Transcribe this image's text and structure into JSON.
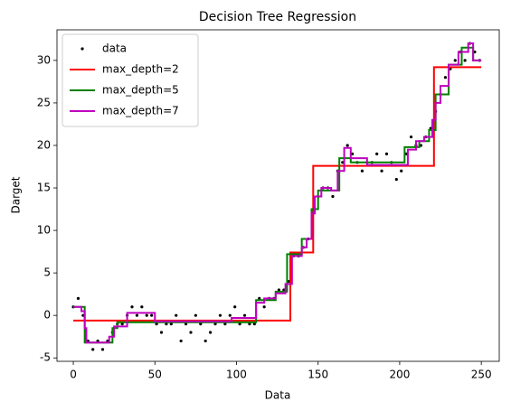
{
  "chart_data": {
    "type": "line",
    "title": "Decision Tree Regression",
    "xlabel": "Data",
    "ylabel": "Darget",
    "xlim": [
      -10,
      261
    ],
    "ylim": [
      -5.4,
      33.6
    ],
    "xticks": [
      0,
      50,
      100,
      150,
      200,
      250
    ],
    "yticks": [
      -5,
      0,
      5,
      10,
      15,
      20,
      25,
      30
    ],
    "grid": false,
    "legend": "upper left",
    "series": [
      {
        "name": "data",
        "type": "scatter",
        "color": "#000000",
        "x": [
          0,
          3,
          6,
          9,
          12,
          15,
          18,
          21,
          24,
          27,
          30,
          33,
          36,
          39,
          42,
          45,
          48,
          51,
          54,
          57,
          60,
          63,
          66,
          69,
          72,
          75,
          78,
          81,
          84,
          87,
          90,
          93,
          96,
          99,
          102,
          105,
          108,
          111,
          114,
          117,
          120,
          123,
          126,
          129,
          132,
          135,
          138,
          141,
          144,
          147,
          150,
          153,
          156,
          159,
          162,
          165,
          168,
          171,
          174,
          177,
          180,
          183,
          186,
          189,
          192,
          195,
          198,
          201,
          204,
          207,
          210,
          213,
          216,
          219,
          222,
          225,
          228,
          231,
          234,
          237,
          240,
          243,
          246,
          249
        ],
        "values": [
          1,
          2,
          0,
          -3,
          -4,
          -3,
          -4,
          -3,
          -2,
          -1,
          -1,
          0,
          1,
          0,
          1,
          0,
          0,
          -1,
          -2,
          -1,
          -1,
          0,
          -3,
          -1,
          -2,
          0,
          -1,
          -3,
          -2,
          -1,
          0,
          -1,
          0,
          1,
          -1,
          0,
          -1,
          -1,
          2,
          1,
          2,
          2,
          3,
          3,
          4,
          7,
          7,
          8,
          9,
          12,
          14,
          15,
          15,
          14,
          17,
          18,
          20,
          19,
          18,
          17,
          18,
          18,
          19,
          17,
          19,
          18,
          16,
          17,
          19,
          21,
          20,
          20,
          21,
          22,
          24,
          26,
          28,
          29,
          30,
          31,
          30,
          32,
          31,
          30
        ]
      },
      {
        "name": "max_depth=2",
        "type": "step",
        "color": "#ff0000",
        "x": [
          0,
          133,
          147,
          221,
          250
        ],
        "values": [
          -0.6,
          7.4,
          17.6,
          29.2,
          29.2
        ]
      },
      {
        "name": "max_depth=5",
        "type": "step",
        "color": "#008000",
        "x": [
          0,
          7,
          24,
          27,
          112,
          124,
          131,
          140,
          146,
          150,
          163,
          170,
          203,
          212,
          218,
          222,
          230,
          238,
          245,
          250
        ],
        "values": [
          1,
          -3.2,
          -1.5,
          -0.8,
          1.8,
          2.8,
          7.2,
          9,
          12.5,
          14.7,
          18.5,
          18,
          19.8,
          20.5,
          21.8,
          26,
          29.5,
          31.5,
          30,
          30
        ]
      },
      {
        "name": "max_depth=7",
        "type": "step",
        "color": "#bf00bf",
        "x": [
          0,
          5,
          7,
          8,
          22,
          25,
          33,
          50,
          97,
          112,
          117,
          124,
          130,
          134,
          140,
          143,
          146,
          148,
          152,
          158,
          162,
          166,
          170,
          180,
          205,
          210,
          215,
          220,
          222,
          225,
          230,
          236,
          242,
          245,
          250
        ],
        "values": [
          1,
          0.5,
          -1.5,
          -3.2,
          -2.5,
          -1.3,
          0.3,
          -0.7,
          -0.3,
          1.5,
          2,
          2.6,
          3.7,
          7,
          8,
          9,
          12,
          14,
          15,
          14.7,
          17,
          19.7,
          18.5,
          17.7,
          19.5,
          20.5,
          21,
          23,
          25,
          27,
          29.5,
          31,
          32,
          30,
          30
        ]
      }
    ]
  }
}
